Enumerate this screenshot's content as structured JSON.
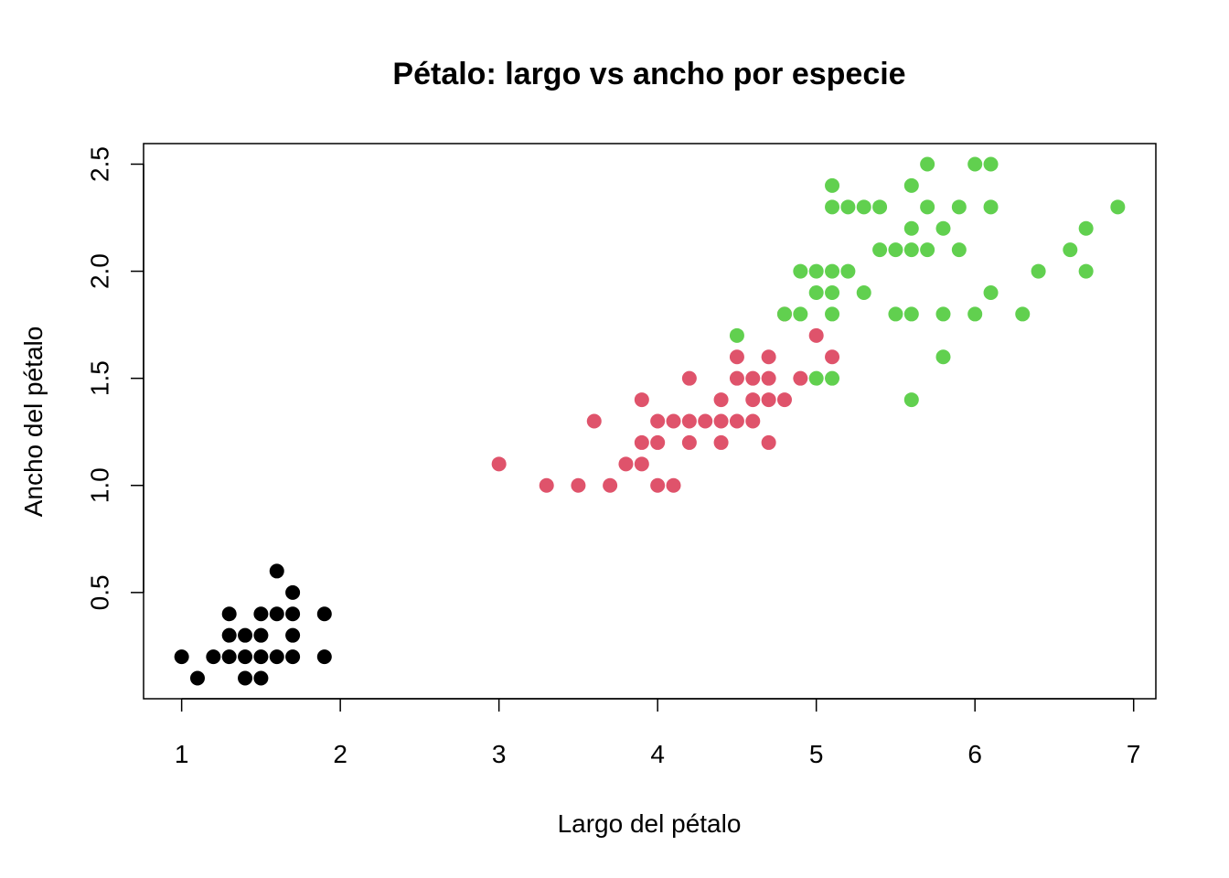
{
  "chart_data": {
    "type": "scatter",
    "title": "Pétalo: largo vs ancho por especie",
    "xlabel": "Largo del pétalo",
    "ylabel": "Ancho del pétalo",
    "xlim": [
      0.76,
      7.14
    ],
    "ylim": [
      0.004,
      2.596
    ],
    "x_ticks": [
      "1",
      "2",
      "3",
      "4",
      "5",
      "6",
      "7"
    ],
    "y_ticks": [
      "0.5",
      "1.0",
      "1.5",
      "2.0",
      "2.5"
    ],
    "grid": false,
    "legend": null,
    "series": [
      {
        "color": "#000000",
        "points": [
          [
            1.0,
            0.2
          ],
          [
            1.1,
            0.1
          ],
          [
            1.2,
            0.2
          ],
          [
            1.3,
            0.2
          ],
          [
            1.3,
            0.3
          ],
          [
            1.3,
            0.4
          ],
          [
            1.4,
            0.1
          ],
          [
            1.4,
            0.2
          ],
          [
            1.4,
            0.3
          ],
          [
            1.5,
            0.1
          ],
          [
            1.5,
            0.2
          ],
          [
            1.5,
            0.3
          ],
          [
            1.5,
            0.4
          ],
          [
            1.6,
            0.2
          ],
          [
            1.6,
            0.4
          ],
          [
            1.6,
            0.6
          ],
          [
            1.7,
            0.2
          ],
          [
            1.7,
            0.3
          ],
          [
            1.7,
            0.4
          ],
          [
            1.7,
            0.5
          ],
          [
            1.9,
            0.2
          ],
          [
            1.9,
            0.4
          ]
        ]
      },
      {
        "color": "#DF536B",
        "points": [
          [
            3.0,
            1.1
          ],
          [
            3.3,
            1.0
          ],
          [
            3.5,
            1.0
          ],
          [
            3.6,
            1.3
          ],
          [
            3.7,
            1.0
          ],
          [
            3.8,
            1.1
          ],
          [
            3.9,
            1.1
          ],
          [
            3.9,
            1.2
          ],
          [
            3.9,
            1.4
          ],
          [
            4.0,
            1.0
          ],
          [
            4.0,
            1.2
          ],
          [
            4.0,
            1.3
          ],
          [
            4.1,
            1.0
          ],
          [
            4.1,
            1.3
          ],
          [
            4.2,
            1.2
          ],
          [
            4.2,
            1.3
          ],
          [
            4.2,
            1.5
          ],
          [
            4.3,
            1.3
          ],
          [
            4.4,
            1.2
          ],
          [
            4.4,
            1.3
          ],
          [
            4.4,
            1.4
          ],
          [
            4.5,
            1.3
          ],
          [
            4.5,
            1.5
          ],
          [
            4.5,
            1.6
          ],
          [
            4.6,
            1.3
          ],
          [
            4.6,
            1.4
          ],
          [
            4.6,
            1.5
          ],
          [
            4.7,
            1.2
          ],
          [
            4.7,
            1.4
          ],
          [
            4.7,
            1.5
          ],
          [
            4.7,
            1.6
          ],
          [
            4.8,
            1.4
          ],
          [
            4.8,
            1.8
          ],
          [
            4.9,
            1.5
          ],
          [
            5.0,
            1.7
          ],
          [
            5.1,
            1.6
          ]
        ]
      },
      {
        "color": "#61D04F",
        "points": [
          [
            4.5,
            1.7
          ],
          [
            4.8,
            1.8
          ],
          [
            4.9,
            1.8
          ],
          [
            4.9,
            2.0
          ],
          [
            5.0,
            1.5
          ],
          [
            5.0,
            1.9
          ],
          [
            5.0,
            2.0
          ],
          [
            5.1,
            1.5
          ],
          [
            5.1,
            1.8
          ],
          [
            5.1,
            1.9
          ],
          [
            5.1,
            2.0
          ],
          [
            5.1,
            2.3
          ],
          [
            5.1,
            2.4
          ],
          [
            5.2,
            2.0
          ],
          [
            5.2,
            2.3
          ],
          [
            5.3,
            1.9
          ],
          [
            5.3,
            2.3
          ],
          [
            5.4,
            2.1
          ],
          [
            5.4,
            2.3
          ],
          [
            5.5,
            1.8
          ],
          [
            5.5,
            2.1
          ],
          [
            5.6,
            1.4
          ],
          [
            5.6,
            1.8
          ],
          [
            5.6,
            2.1
          ],
          [
            5.6,
            2.2
          ],
          [
            5.6,
            2.4
          ],
          [
            5.7,
            2.1
          ],
          [
            5.7,
            2.3
          ],
          [
            5.7,
            2.5
          ],
          [
            5.8,
            1.6
          ],
          [
            5.8,
            1.8
          ],
          [
            5.8,
            2.2
          ],
          [
            5.9,
            2.1
          ],
          [
            5.9,
            2.3
          ],
          [
            6.0,
            1.8
          ],
          [
            6.0,
            2.5
          ],
          [
            6.1,
            1.9
          ],
          [
            6.1,
            2.3
          ],
          [
            6.1,
            2.5
          ],
          [
            6.3,
            1.8
          ],
          [
            6.4,
            2.0
          ],
          [
            6.6,
            2.1
          ],
          [
            6.7,
            2.0
          ],
          [
            6.7,
            2.2
          ],
          [
            6.9,
            2.3
          ]
        ]
      }
    ]
  }
}
